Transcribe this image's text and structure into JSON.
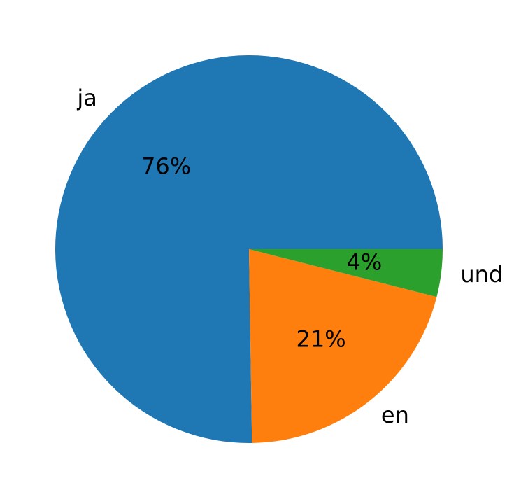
{
  "chart_data": {
    "type": "pie",
    "categories": [
      "ja",
      "en",
      "und"
    ],
    "values": [
      76,
      21,
      4
    ],
    "value_labels": [
      "76%",
      "21%",
      "4%"
    ],
    "colors": [
      "#1f77b4",
      "#ff7f0e",
      "#2ca02c"
    ]
  }
}
